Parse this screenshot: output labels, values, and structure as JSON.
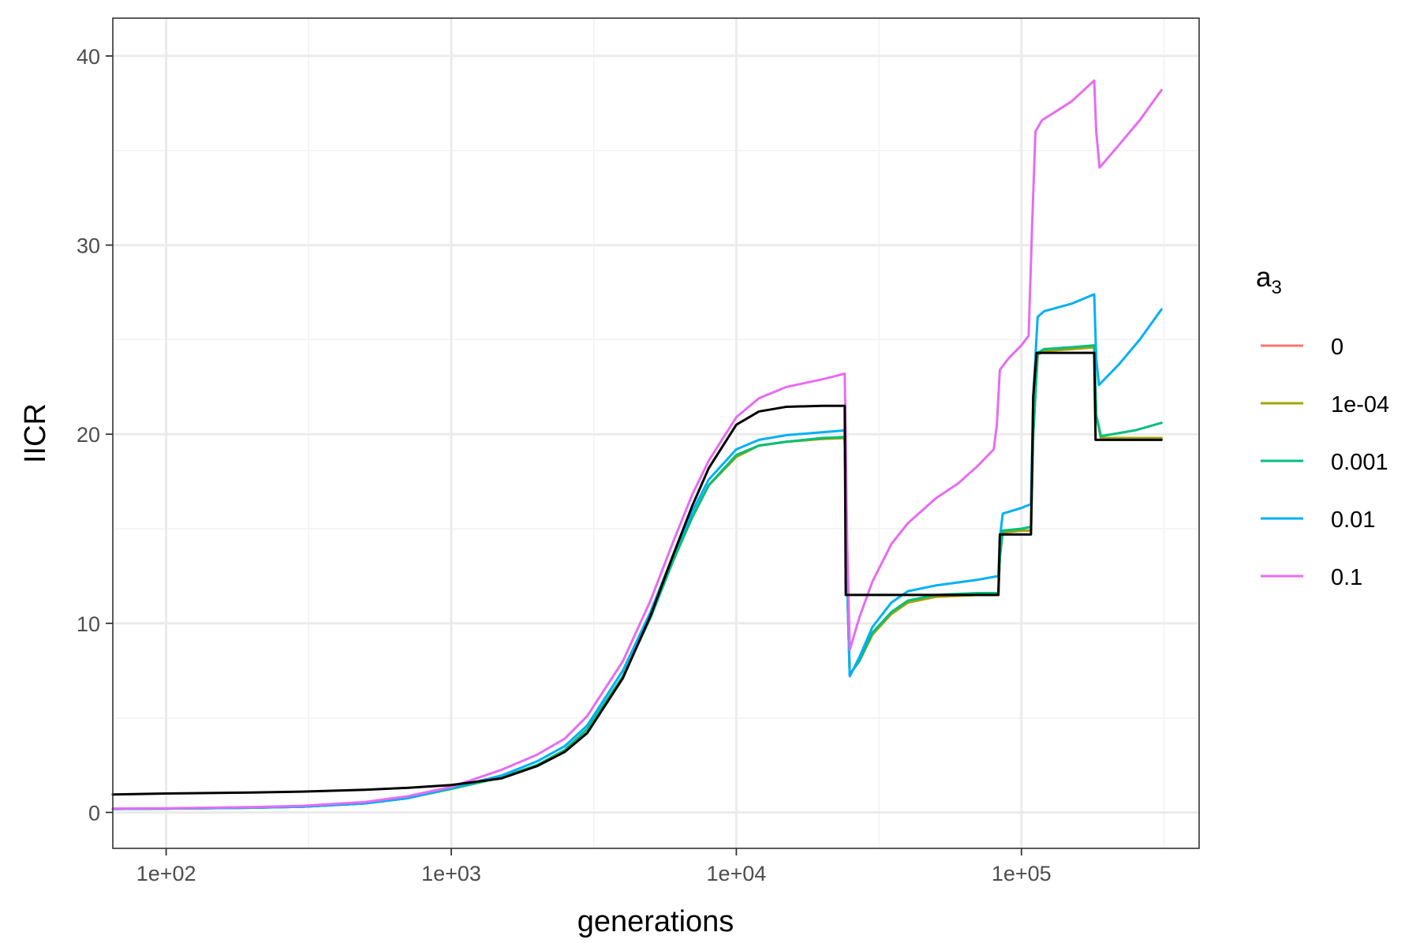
{
  "chart_data": {
    "type": "line",
    "xlabel": "generations",
    "ylabel": "IICR",
    "x_scale": "log10",
    "xlim": [
      65,
      420000
    ],
    "ylim": [
      -1.9,
      42
    ],
    "x_ticks": [
      {
        "value": 100,
        "label": "1e+02"
      },
      {
        "value": 1000,
        "label": "1e+03"
      },
      {
        "value": 10000,
        "label": "1e+04"
      },
      {
        "value": 100000,
        "label": "1e+05"
      }
    ],
    "x_minor_ticks": [
      316.2,
      3162.3,
      31622.8,
      316227.8
    ],
    "y_ticks": [
      {
        "value": 0,
        "label": "0"
      },
      {
        "value": 10,
        "label": "10"
      },
      {
        "value": 20,
        "label": "20"
      },
      {
        "value": 30,
        "label": "30"
      },
      {
        "value": 40,
        "label": "40"
      }
    ],
    "y_minor_ticks": [
      5,
      15,
      25,
      35
    ],
    "grid": true,
    "legend": {
      "title": "a",
      "title_subscript": "3",
      "position": "right",
      "entries": [
        {
          "label": "0",
          "color": "#F8766D"
        },
        {
          "label": "1e-04",
          "color": "#A3A500"
        },
        {
          "label": "0.001",
          "color": "#00BF7D"
        },
        {
          "label": "0.01",
          "color": "#00B0F6"
        },
        {
          "label": "0.1",
          "color": "#E76BF3"
        }
      ]
    },
    "series": [
      {
        "name": "0",
        "color": "#F8766D",
        "points": [
          [
            65,
            0.18
          ],
          [
            100,
            0.2
          ],
          [
            200,
            0.25
          ],
          [
            300,
            0.3
          ],
          [
            500,
            0.48
          ],
          [
            700,
            0.75
          ],
          [
            1000,
            1.25
          ],
          [
            1500,
            1.85
          ],
          [
            2000,
            2.5
          ],
          [
            2500,
            3.3
          ],
          [
            3000,
            4.4
          ],
          [
            4000,
            7.2
          ],
          [
            5000,
            10.3
          ],
          [
            6000,
            13.3
          ],
          [
            7000,
            15.6
          ],
          [
            8000,
            17.3
          ],
          [
            10000,
            18.8
          ],
          [
            12000,
            19.4
          ],
          [
            15000,
            19.6
          ],
          [
            20000,
            19.75
          ],
          [
            24000,
            19.8
          ],
          [
            24500,
            12
          ],
          [
            25000,
            7.3
          ],
          [
            27000,
            8
          ],
          [
            30000,
            9.4
          ],
          [
            35000,
            10.5
          ],
          [
            40000,
            11.1
          ],
          [
            50000,
            11.4
          ],
          [
            70000,
            11.5
          ],
          [
            83000,
            11.5
          ],
          [
            84000,
            13.5
          ],
          [
            86000,
            14.8
          ],
          [
            100000,
            14.9
          ],
          [
            108000,
            14.9
          ],
          [
            110000,
            20
          ],
          [
            114000,
            24.2
          ],
          [
            120000,
            24.4
          ],
          [
            150000,
            24.5
          ],
          [
            180000,
            24.6
          ],
          [
            183000,
            21
          ],
          [
            190000,
            19.8
          ],
          [
            250000,
            19.8
          ],
          [
            310000,
            19.8
          ]
        ]
      },
      {
        "name": "1e-04",
        "color": "#A3A500",
        "points": [
          [
            65,
            0.18
          ],
          [
            100,
            0.2
          ],
          [
            200,
            0.25
          ],
          [
            300,
            0.3
          ],
          [
            500,
            0.48
          ],
          [
            700,
            0.75
          ],
          [
            1000,
            1.25
          ],
          [
            1500,
            1.85
          ],
          [
            2000,
            2.5
          ],
          [
            2500,
            3.3
          ],
          [
            3000,
            4.4
          ],
          [
            4000,
            7.2
          ],
          [
            5000,
            10.3
          ],
          [
            6000,
            13.3
          ],
          [
            7000,
            15.6
          ],
          [
            8000,
            17.3
          ],
          [
            10000,
            18.8
          ],
          [
            12000,
            19.4
          ],
          [
            15000,
            19.6
          ],
          [
            20000,
            19.75
          ],
          [
            24000,
            19.8
          ],
          [
            24500,
            12
          ],
          [
            25000,
            7.3
          ],
          [
            27000,
            8
          ],
          [
            30000,
            9.4
          ],
          [
            35000,
            10.5
          ],
          [
            40000,
            11.1
          ],
          [
            50000,
            11.4
          ],
          [
            70000,
            11.5
          ],
          [
            83000,
            11.5
          ],
          [
            84000,
            13.5
          ],
          [
            86000,
            14.8
          ],
          [
            100000,
            14.9
          ],
          [
            108000,
            14.9
          ],
          [
            110000,
            20
          ],
          [
            114000,
            24.2
          ],
          [
            120000,
            24.4
          ],
          [
            150000,
            24.5
          ],
          [
            180000,
            24.6
          ],
          [
            183000,
            21
          ],
          [
            190000,
            19.8
          ],
          [
            250000,
            19.8
          ],
          [
            310000,
            19.8
          ]
        ]
      },
      {
        "name": "0.001",
        "color": "#00BF7D",
        "points": [
          [
            65,
            0.18
          ],
          [
            100,
            0.2
          ],
          [
            200,
            0.25
          ],
          [
            300,
            0.3
          ],
          [
            500,
            0.48
          ],
          [
            700,
            0.75
          ],
          [
            1000,
            1.25
          ],
          [
            1500,
            1.85
          ],
          [
            2000,
            2.5
          ],
          [
            2500,
            3.3
          ],
          [
            3000,
            4.4
          ],
          [
            4000,
            7.2
          ],
          [
            5000,
            10.3
          ],
          [
            6000,
            13.3
          ],
          [
            7000,
            15.6
          ],
          [
            8000,
            17.3
          ],
          [
            10000,
            18.9
          ],
          [
            12000,
            19.4
          ],
          [
            15000,
            19.6
          ],
          [
            20000,
            19.8
          ],
          [
            24000,
            19.85
          ],
          [
            24500,
            12
          ],
          [
            25000,
            7.3
          ],
          [
            27000,
            8
          ],
          [
            30000,
            9.5
          ],
          [
            35000,
            10.6
          ],
          [
            40000,
            11.2
          ],
          [
            50000,
            11.5
          ],
          [
            70000,
            11.6
          ],
          [
            83000,
            11.6
          ],
          [
            84000,
            13.5
          ],
          [
            86000,
            14.9
          ],
          [
            100000,
            15
          ],
          [
            108000,
            15.1
          ],
          [
            110000,
            20
          ],
          [
            114000,
            24.3
          ],
          [
            120000,
            24.5
          ],
          [
            150000,
            24.6
          ],
          [
            180000,
            24.7
          ],
          [
            183000,
            21
          ],
          [
            190000,
            19.9
          ],
          [
            250000,
            20.2
          ],
          [
            310000,
            20.6
          ]
        ]
      },
      {
        "name": "0.01",
        "color": "#00B0F6",
        "points": [
          [
            65,
            0.18
          ],
          [
            100,
            0.2
          ],
          [
            200,
            0.25
          ],
          [
            300,
            0.3
          ],
          [
            500,
            0.48
          ],
          [
            700,
            0.75
          ],
          [
            1000,
            1.3
          ],
          [
            1500,
            1.95
          ],
          [
            2000,
            2.7
          ],
          [
            2500,
            3.5
          ],
          [
            3000,
            4.6
          ],
          [
            4000,
            7.5
          ],
          [
            5000,
            10.6
          ],
          [
            6000,
            13.6
          ],
          [
            7000,
            15.9
          ],
          [
            8000,
            17.6
          ],
          [
            10000,
            19.2
          ],
          [
            12000,
            19.7
          ],
          [
            15000,
            19.95
          ],
          [
            20000,
            20.1
          ],
          [
            24000,
            20.2
          ],
          [
            24500,
            12
          ],
          [
            25000,
            7.2
          ],
          [
            27000,
            8.2
          ],
          [
            30000,
            9.8
          ],
          [
            35000,
            11.1
          ],
          [
            40000,
            11.7
          ],
          [
            50000,
            12
          ],
          [
            70000,
            12.3
          ],
          [
            83000,
            12.5
          ],
          [
            84000,
            14.5
          ],
          [
            86000,
            15.8
          ],
          [
            100000,
            16.1
          ],
          [
            108000,
            16.3
          ],
          [
            110000,
            22
          ],
          [
            114000,
            26.2
          ],
          [
            120000,
            26.5
          ],
          [
            150000,
            26.9
          ],
          [
            180000,
            27.4
          ],
          [
            183000,
            24
          ],
          [
            187000,
            22.6
          ],
          [
            220000,
            23.7
          ],
          [
            260000,
            25
          ],
          [
            310000,
            26.6
          ]
        ]
      },
      {
        "name": "0.1",
        "color": "#E76BF3",
        "points": [
          [
            65,
            0.2
          ],
          [
            100,
            0.22
          ],
          [
            200,
            0.28
          ],
          [
            300,
            0.35
          ],
          [
            500,
            0.55
          ],
          [
            700,
            0.85
          ],
          [
            1000,
            1.35
          ],
          [
            1500,
            2.25
          ],
          [
            2000,
            3.05
          ],
          [
            2500,
            3.9
          ],
          [
            3000,
            5.1
          ],
          [
            4000,
            8
          ],
          [
            5000,
            11.2
          ],
          [
            6000,
            14.3
          ],
          [
            7000,
            16.8
          ],
          [
            8000,
            18.6
          ],
          [
            10000,
            20.9
          ],
          [
            12000,
            21.9
          ],
          [
            15000,
            22.5
          ],
          [
            20000,
            22.9
          ],
          [
            24000,
            23.2
          ],
          [
            24500,
            14
          ],
          [
            25000,
            8.6
          ],
          [
            27000,
            10.3
          ],
          [
            30000,
            12.2
          ],
          [
            35000,
            14.2
          ],
          [
            40000,
            15.3
          ],
          [
            50000,
            16.6
          ],
          [
            60000,
            17.4
          ],
          [
            70000,
            18.3
          ],
          [
            80000,
            19.2
          ],
          [
            82000,
            20.5
          ],
          [
            84000,
            23.4
          ],
          [
            90000,
            24
          ],
          [
            100000,
            24.7
          ],
          [
            106000,
            25.2
          ],
          [
            109000,
            31
          ],
          [
            112000,
            36
          ],
          [
            118000,
            36.6
          ],
          [
            130000,
            37
          ],
          [
            150000,
            37.6
          ],
          [
            180000,
            38.7
          ],
          [
            183000,
            36
          ],
          [
            188000,
            34.1
          ],
          [
            220000,
            35.3
          ],
          [
            260000,
            36.6
          ],
          [
            310000,
            38.2
          ]
        ]
      },
      {
        "name": "",
        "color": "#000000",
        "points": [
          [
            65,
            0.95
          ],
          [
            100,
            1
          ],
          [
            200,
            1.05
          ],
          [
            300,
            1.1
          ],
          [
            500,
            1.2
          ],
          [
            700,
            1.3
          ],
          [
            1000,
            1.45
          ],
          [
            1500,
            1.8
          ],
          [
            2000,
            2.45
          ],
          [
            2500,
            3.2
          ],
          [
            3000,
            4.2
          ],
          [
            4000,
            7.1
          ],
          [
            5000,
            10.4
          ],
          [
            6000,
            13.6
          ],
          [
            7000,
            16.2
          ],
          [
            8000,
            18.2
          ],
          [
            10000,
            20.5
          ],
          [
            12000,
            21.2
          ],
          [
            15000,
            21.45
          ],
          [
            20000,
            21.5
          ],
          [
            24000,
            21.5
          ],
          [
            24200,
            11.5
          ],
          [
            50000,
            11.5
          ],
          [
            83000,
            11.5
          ],
          [
            84000,
            14.7
          ],
          [
            100000,
            14.7
          ],
          [
            108000,
            14.7
          ],
          [
            110000,
            22
          ],
          [
            113000,
            24.3
          ],
          [
            180000,
            24.3
          ],
          [
            182000,
            19.7
          ],
          [
            310000,
            19.7
          ]
        ]
      }
    ]
  }
}
